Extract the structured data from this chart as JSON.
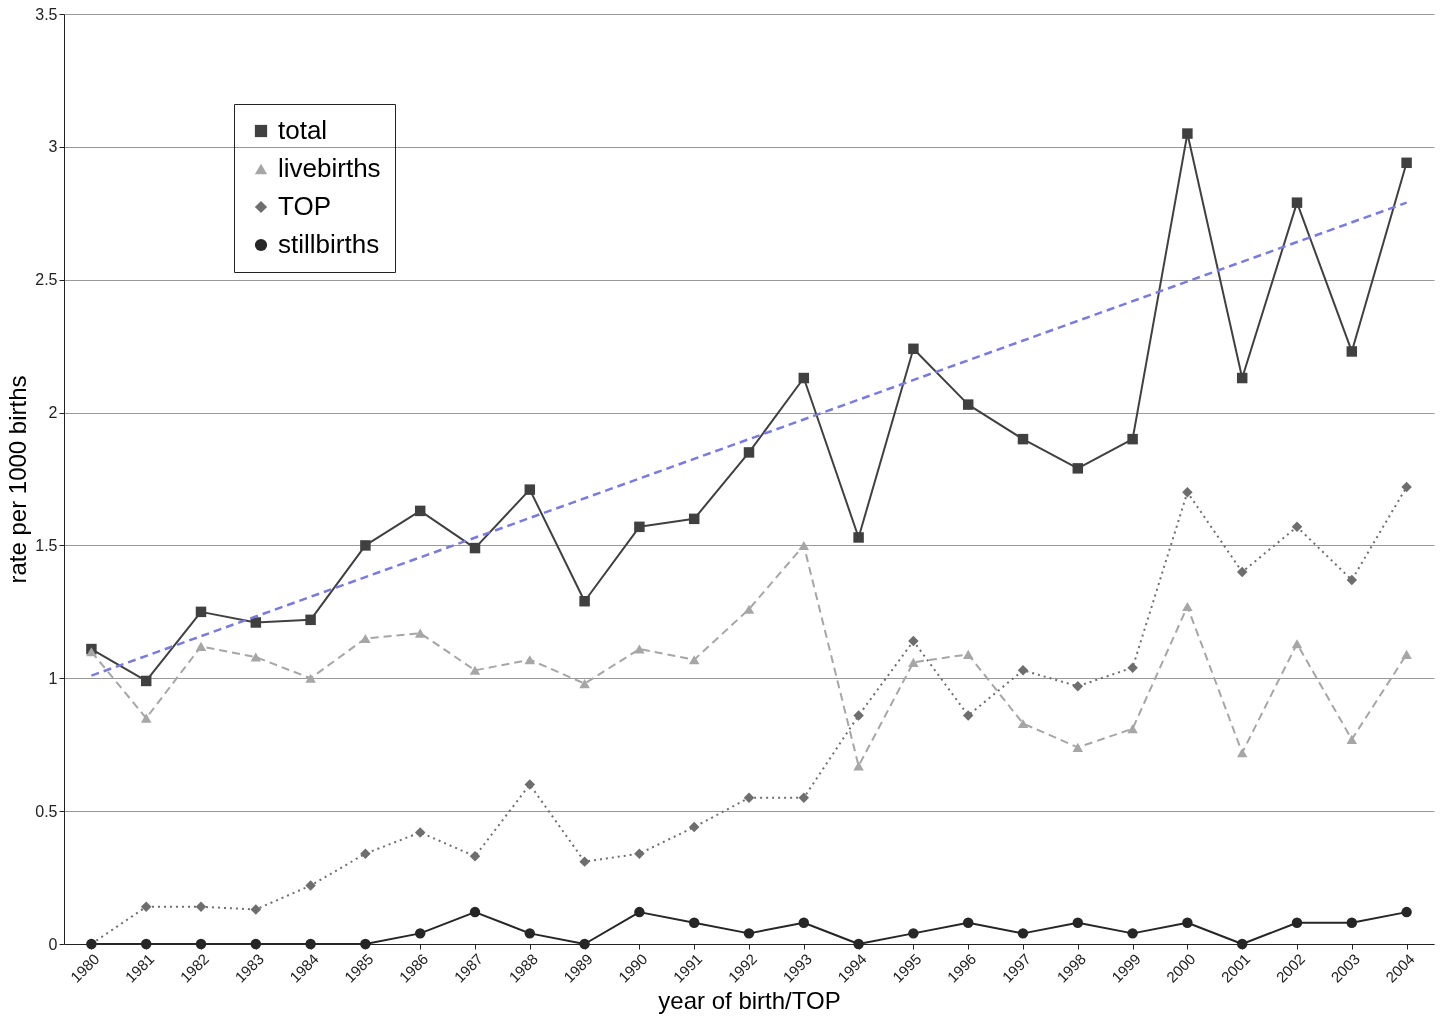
{
  "chart_data": {
    "type": "line",
    "xlabel": "year of birth/TOP",
    "ylabel": "rate per 1000 births",
    "categories": [
      "1980",
      "1981",
      "1982",
      "1983",
      "1984",
      "1985",
      "1986",
      "1987",
      "1988",
      "1989",
      "1990",
      "1991",
      "1992",
      "1993",
      "1994",
      "1995",
      "1996",
      "1997",
      "1998",
      "1999",
      "2000",
      "2001",
      "2002",
      "2003",
      "2004"
    ],
    "series": [
      {
        "name": "total",
        "color": "#404040",
        "marker": "square",
        "line_style": "solid",
        "values": [
          1.11,
          0.99,
          1.25,
          1.21,
          1.22,
          1.5,
          1.63,
          1.49,
          1.71,
          1.29,
          1.57,
          1.6,
          1.85,
          2.13,
          1.53,
          2.24,
          2.03,
          1.9,
          1.79,
          1.9,
          3.05,
          2.13,
          2.79,
          2.23,
          2.94
        ]
      },
      {
        "name": "livebirths",
        "color": "#a6a6a6",
        "marker": "triangle",
        "line_style": "dashed",
        "values": [
          1.1,
          0.85,
          1.12,
          1.08,
          1.0,
          1.15,
          1.17,
          1.03,
          1.07,
          0.98,
          1.11,
          1.07,
          1.26,
          1.5,
          0.67,
          1.06,
          1.09,
          0.83,
          0.74,
          0.81,
          1.27,
          0.72,
          1.13,
          0.77,
          1.09
        ]
      },
      {
        "name": "TOP",
        "color": "#6e6e6e",
        "marker": "diamond",
        "line_style": "dotted",
        "values": [
          0,
          0.14,
          0.14,
          0.13,
          0.22,
          0.34,
          0.42,
          0.33,
          0.6,
          0.31,
          0.34,
          0.44,
          0.55,
          0.55,
          0.86,
          1.14,
          0.86,
          1.03,
          0.97,
          1.04,
          1.7,
          1.4,
          1.57,
          1.37,
          1.72
        ]
      },
      {
        "name": "stillbirths",
        "color": "#262626",
        "marker": "circle",
        "line_style": "solid",
        "values": [
          0,
          0,
          0,
          0,
          0,
          0,
          0.04,
          0.12,
          0.04,
          0,
          0.12,
          0.08,
          0.04,
          0.08,
          0,
          0.04,
          0.08,
          0.04,
          0.08,
          0.04,
          0.08,
          0,
          0.08,
          0.08,
          0.12
        ]
      },
      {
        "color": "#7b7bdb",
        "marker": "none",
        "line_style": "dashed",
        "values": [
          1.01,
          null,
          null,
          null,
          null,
          null,
          null,
          null,
          null,
          null,
          null,
          null,
          null,
          null,
          null,
          null,
          null,
          null,
          null,
          null,
          null,
          null,
          null,
          null,
          2.79
        ]
      }
    ],
    "ylim": [
      0,
      3.5
    ],
    "yticks": [
      0,
      0.5,
      1,
      1.5,
      2,
      2.5,
      3,
      3.5
    ],
    "grid": "y",
    "legend": "top left"
  }
}
